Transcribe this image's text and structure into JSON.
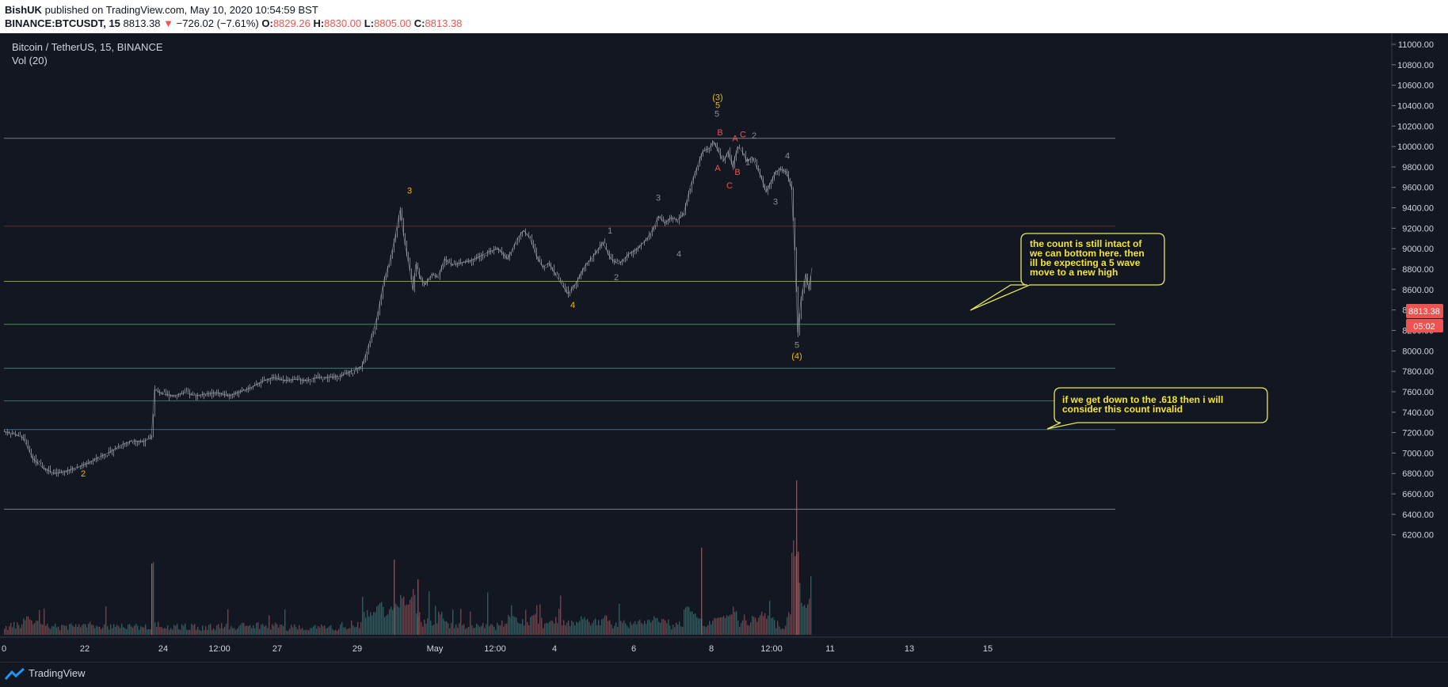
{
  "header": {
    "author": "BishUK",
    "published": "published on TradingView.com, May 10, 2020 10:54:59 BST",
    "symbol": "BINANCE:BTCUSDT, 15",
    "last": "8813.38",
    "change_arrow": "▼",
    "change": "−726.02 (−7.61%)",
    "o_label": "O:",
    "o": "8829.26",
    "h_label": "H:",
    "h": "8830.00",
    "l_label": "L:",
    "l": "8805.00",
    "c_label": "C:",
    "c": "8813.38"
  },
  "legend": {
    "title": "Bitcoin / TetherUS, 15, BINANCE",
    "volume": "Vol (20)"
  },
  "footer": {
    "brand": "TradingView"
  },
  "colors": {
    "background": "#131722",
    "up": "#26a69a",
    "down": "#ef5350",
    "wave_main": "#f0b90b",
    "wave_sub": "#8b8f98",
    "wave_abc": "#ef5350",
    "callout_text": "#f5e62c",
    "callout_border": "#e8e85c"
  },
  "chart_data": {
    "type": "line",
    "title": "Bitcoin / TetherUS, 15, BINANCE",
    "x_ticks": [
      "0",
      "22",
      "24",
      "12:00",
      "27",
      "29",
      "May",
      "12:00",
      "4",
      "6",
      "8",
      "12:00",
      "11",
      "13",
      "15"
    ],
    "y_ticks": [
      "6200.00",
      "6400.00",
      "6600.00",
      "6800.00",
      "7000.00",
      "7200.00",
      "7400.00",
      "7600.00",
      "7800.00",
      "8000.00",
      "8200.00",
      "8400.00",
      "8600.00",
      "8800.00",
      "9000.00",
      "9200.00",
      "9400.00",
      "9600.00",
      "9800.00",
      "10000.00",
      "10200.00",
      "10400.00",
      "10600.00",
      "10800.00",
      "11000.00"
    ],
    "ylim": [
      6050,
      11150
    ],
    "last_price": "8813.38",
    "countdown": "05:02",
    "series": [
      {
        "x": [
          0,
          12,
          24,
          36,
          50,
          64,
          78,
          92,
          106,
          120,
          134,
          148,
          162,
          176,
          186,
          190,
          200,
          214,
          228,
          242,
          256,
          270,
          284,
          298,
          312,
          326,
          340,
          354,
          368,
          382,
          396,
          410,
          424,
          438,
          452,
          462,
          470,
          480,
          486,
          492,
          500,
          506,
          512,
          516,
          520,
          526,
          532,
          540,
          548,
          556,
          566,
          576,
          588,
          600,
          612,
          624,
          636,
          648,
          656,
          664,
          672,
          680,
          688,
          696,
          704,
          712,
          722,
          734,
          746,
          756,
          766,
          776,
          788,
          800,
          812,
          820,
          826,
          834,
          842,
          850,
          858,
          866,
          874,
          882,
          890,
          896,
          902,
          908,
          914,
          920,
          926,
          932,
          938,
          944,
          950,
          956,
          962,
          968,
          974,
          980,
          988,
          994,
          998,
          1000,
          1002,
          1006,
          1012,
          1016,
          1020
        ],
        "values": [
          7210,
          7190,
          7150,
          6950,
          6850,
          6800,
          6820,
          6860,
          6900,
          6960,
          7010,
          7080,
          7120,
          7110,
          7150,
          7620,
          7580,
          7560,
          7590,
          7560,
          7580,
          7590,
          7560,
          7600,
          7640,
          7700,
          7740,
          7710,
          7720,
          7710,
          7740,
          7740,
          7750,
          7800,
          7850,
          8100,
          8300,
          8700,
          8850,
          9050,
          9380,
          9050,
          8800,
          8600,
          8850,
          8700,
          8650,
          8750,
          8720,
          8900,
          8840,
          8860,
          8880,
          8920,
          8970,
          9000,
          8900,
          9100,
          9180,
          9100,
          8930,
          8820,
          8860,
          8750,
          8650,
          8560,
          8660,
          8840,
          8950,
          9060,
          8900,
          8850,
          8940,
          9000,
          9100,
          9200,
          9320,
          9250,
          9300,
          9280,
          9340,
          9600,
          9780,
          9950,
          9980,
          10050,
          9950,
          9850,
          9950,
          9800,
          10000,
          9950,
          9850,
          9900,
          9800,
          9700,
          9550,
          9650,
          9750,
          9780,
          9750,
          9600,
          9000,
          8600,
          8180,
          8500,
          8750,
          8600,
          8813
        ]
      }
    ],
    "horizontal_levels": [
      {
        "price": 10080,
        "color": "#787b86"
      },
      {
        "price": 9220,
        "color": "#5d2f35"
      },
      {
        "price": 8680,
        "color": "#8c9a3f"
      },
      {
        "price": 8260,
        "color": "#4f8a52"
      },
      {
        "price": 7830,
        "color": "#3f7e6e"
      },
      {
        "price": 7510,
        "color": "#3f6a6a"
      },
      {
        "price": 7230,
        "color": "#3b6886"
      },
      {
        "price": 6450,
        "color": "#787b86"
      }
    ],
    "wave_labels": [
      {
        "text": "2",
        "x": 100,
        "price": 6770,
        "color": "#f0b90b"
      },
      {
        "text": "3",
        "x": 512,
        "price": 9540,
        "color": "#f0b90b"
      },
      {
        "text": "4",
        "x": 718,
        "price": 8420,
        "color": "#f0b90b"
      },
      {
        "text": "(3)",
        "x": 901,
        "price": 10455,
        "color": "#f0b90b"
      },
      {
        "text": "5",
        "x": 901,
        "price": 10375,
        "color": "#f0b90b"
      },
      {
        "text": "(4)",
        "x": 1001,
        "price": 7920,
        "color": "#f0b90b"
      },
      {
        "text": "1",
        "x": 765,
        "price": 9150,
        "color": "#8b8f98"
      },
      {
        "text": "2",
        "x": 773,
        "price": 8690,
        "color": "#8b8f98"
      },
      {
        "text": "3",
        "x": 826,
        "price": 9470,
        "color": "#8b8f98"
      },
      {
        "text": "4",
        "x": 852,
        "price": 8920,
        "color": "#8b8f98"
      },
      {
        "text": "5",
        "x": 900,
        "price": 10290,
        "color": "#8b8f98"
      },
      {
        "text": "2",
        "x": 947,
        "price": 10080,
        "color": "#8b8f98"
      },
      {
        "text": "1",
        "x": 939,
        "price": 9820,
        "color": "#8b8f98"
      },
      {
        "text": "3",
        "x": 974,
        "price": 9430,
        "color": "#8b8f98"
      },
      {
        "text": "4",
        "x": 989,
        "price": 9880,
        "color": "#8b8f98"
      },
      {
        "text": "5",
        "x": 1001,
        "price": 8030,
        "color": "#8b8f98"
      },
      {
        "text": "B",
        "x": 904,
        "price": 10110,
        "color": "#ef5350"
      },
      {
        "text": "A",
        "x": 923,
        "price": 10050,
        "color": "#ef5350"
      },
      {
        "text": "C",
        "x": 933,
        "price": 10090,
        "color": "#ef5350"
      },
      {
        "text": "A",
        "x": 901,
        "price": 9760,
        "color": "#ef5350"
      },
      {
        "text": "B",
        "x": 926,
        "price": 9720,
        "color": "#ef5350"
      },
      {
        "text": "C",
        "x": 916,
        "price": 9590,
        "color": "#ef5350"
      }
    ]
  },
  "annotations": {
    "callout_1": [
      "the count is still intact of",
      "we can bottom here. then",
      "ill be expecting a 5 wave",
      "move to a new high"
    ],
    "callout_2": [
      "if we get down to the .618 then i will",
      "consider this count invalid"
    ]
  }
}
